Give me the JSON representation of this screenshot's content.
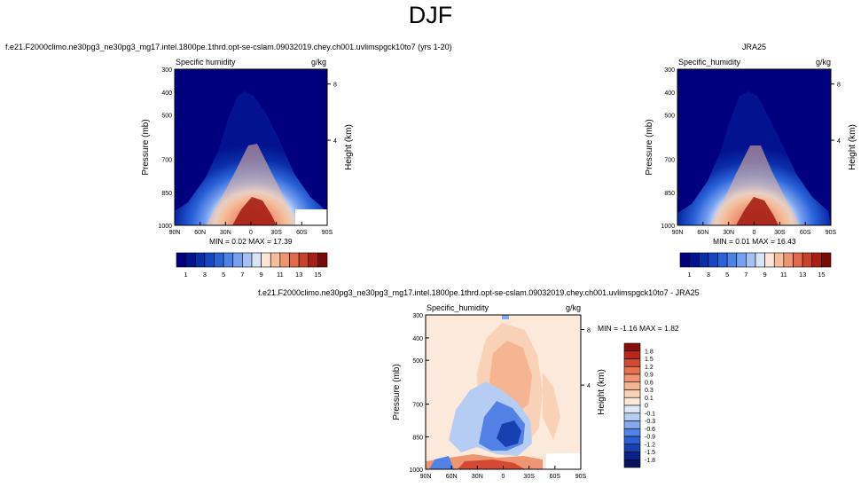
{
  "page": {
    "title": "DJF",
    "left_caption": "f.e21.F2000climo.ne30pg3_ne30pg3_mg17.intel.1800pe.1thrd.opt-se-cslam.09032019.chey.ch001.uvlimspgck10to7 (yrs 1-20)",
    "right_caption": "JRA25",
    "bottom_caption": "f.e21.F2000climo.ne30pg3_ne30pg3_mg17.intel.1800pe.1thrd.opt-se-cslam.09032019.chey.ch001.uvlimspgck10to7 - JRA25"
  },
  "colors": {
    "sequential": [
      "#00007f",
      "#03138f",
      "#0a2da8",
      "#1547c2",
      "#2a63d8",
      "#4a82e6",
      "#759ff0",
      "#a6c0f4",
      "#d8e4f7",
      "#fbe5d4",
      "#f5bd9a",
      "#ef9470",
      "#e26a49",
      "#c9422c",
      "#a62015",
      "#7a0a05"
    ],
    "difference": [
      "#08135f",
      "#0c2389",
      "#1740b0",
      "#2e5fd0",
      "#5282e6",
      "#86a8ee",
      "#b5ccf3",
      "#dde7f6",
      "#fde9da",
      "#f9d1b6",
      "#f5b593",
      "#ef9572",
      "#e5714f",
      "#d24a31",
      "#b7281a",
      "#8a0e07"
    ]
  },
  "chart_data": [
    {
      "type": "heatmap",
      "panel": "model",
      "title_left": "Specific humidity",
      "title_right": "g/kg",
      "ylabel": "Pressure (mb)",
      "ylabel_right": "Height (km)",
      "x_ticks": [
        "90N",
        "60N",
        "30N",
        "0",
        "30S",
        "60S",
        "90S"
      ],
      "y_ticks": [
        "300",
        "400",
        "500",
        "700",
        "850",
        "1000"
      ],
      "y_right_ticks": [
        "8",
        "4"
      ],
      "ylim": [
        1000,
        300
      ],
      "xlim": [
        90,
        -90
      ],
      "min_max_text": "MIN =  0.02   MAX =  17.39",
      "colorbar_labels": [
        "1",
        "3",
        "5",
        "7",
        "9",
        "11",
        "13",
        "15"
      ],
      "peak_value": 17.39,
      "peak_lat": 0,
      "peak_pressure": 1000
    },
    {
      "type": "heatmap",
      "panel": "reanalysis",
      "title_left": "Specific_humidity",
      "title_right": "g/kg",
      "ylabel": "Pressure (mb)",
      "ylabel_right": "Height (km)",
      "x_ticks": [
        "90N",
        "60N",
        "30N",
        "0",
        "30S",
        "60S",
        "90S"
      ],
      "y_ticks": [
        "300",
        "400",
        "500",
        "700",
        "850",
        "1000"
      ],
      "y_right_ticks": [
        "8",
        "4"
      ],
      "ylim": [
        1000,
        300
      ],
      "xlim": [
        90,
        -90
      ],
      "min_max_text": "MIN =  0.01   MAX =  16.43",
      "colorbar_labels": [
        "1",
        "3",
        "5",
        "7",
        "9",
        "11",
        "13",
        "15"
      ],
      "peak_value": 16.43,
      "peak_lat": 0,
      "peak_pressure": 1000
    },
    {
      "type": "heatmap",
      "panel": "difference",
      "title_left": "Specific_humidity",
      "title_right": "g/kg",
      "ylabel": "Pressure (mb)",
      "ylabel_right": "Height (km)",
      "x_ticks": [
        "90N",
        "60N",
        "30N",
        "0",
        "30S",
        "60S",
        "90S"
      ],
      "y_ticks": [
        "300",
        "400",
        "500",
        "700",
        "850",
        "1000"
      ],
      "y_right_ticks": [
        "8",
        "4"
      ],
      "ylim": [
        1000,
        300
      ],
      "xlim": [
        90,
        -90
      ],
      "min_max_text": "MIN = -1.16  MAX =  1.82",
      "colorbar_labels": [
        "1.8",
        "1.5",
        "1.2",
        "0.9",
        "0.6",
        "0.3",
        "0.1",
        "0",
        "-0.1",
        "-0.3",
        "-0.6",
        "-0.9",
        "-1.2",
        "-1.5",
        "-1.8"
      ],
      "min_value": -1.16,
      "max_value": 1.82
    }
  ]
}
